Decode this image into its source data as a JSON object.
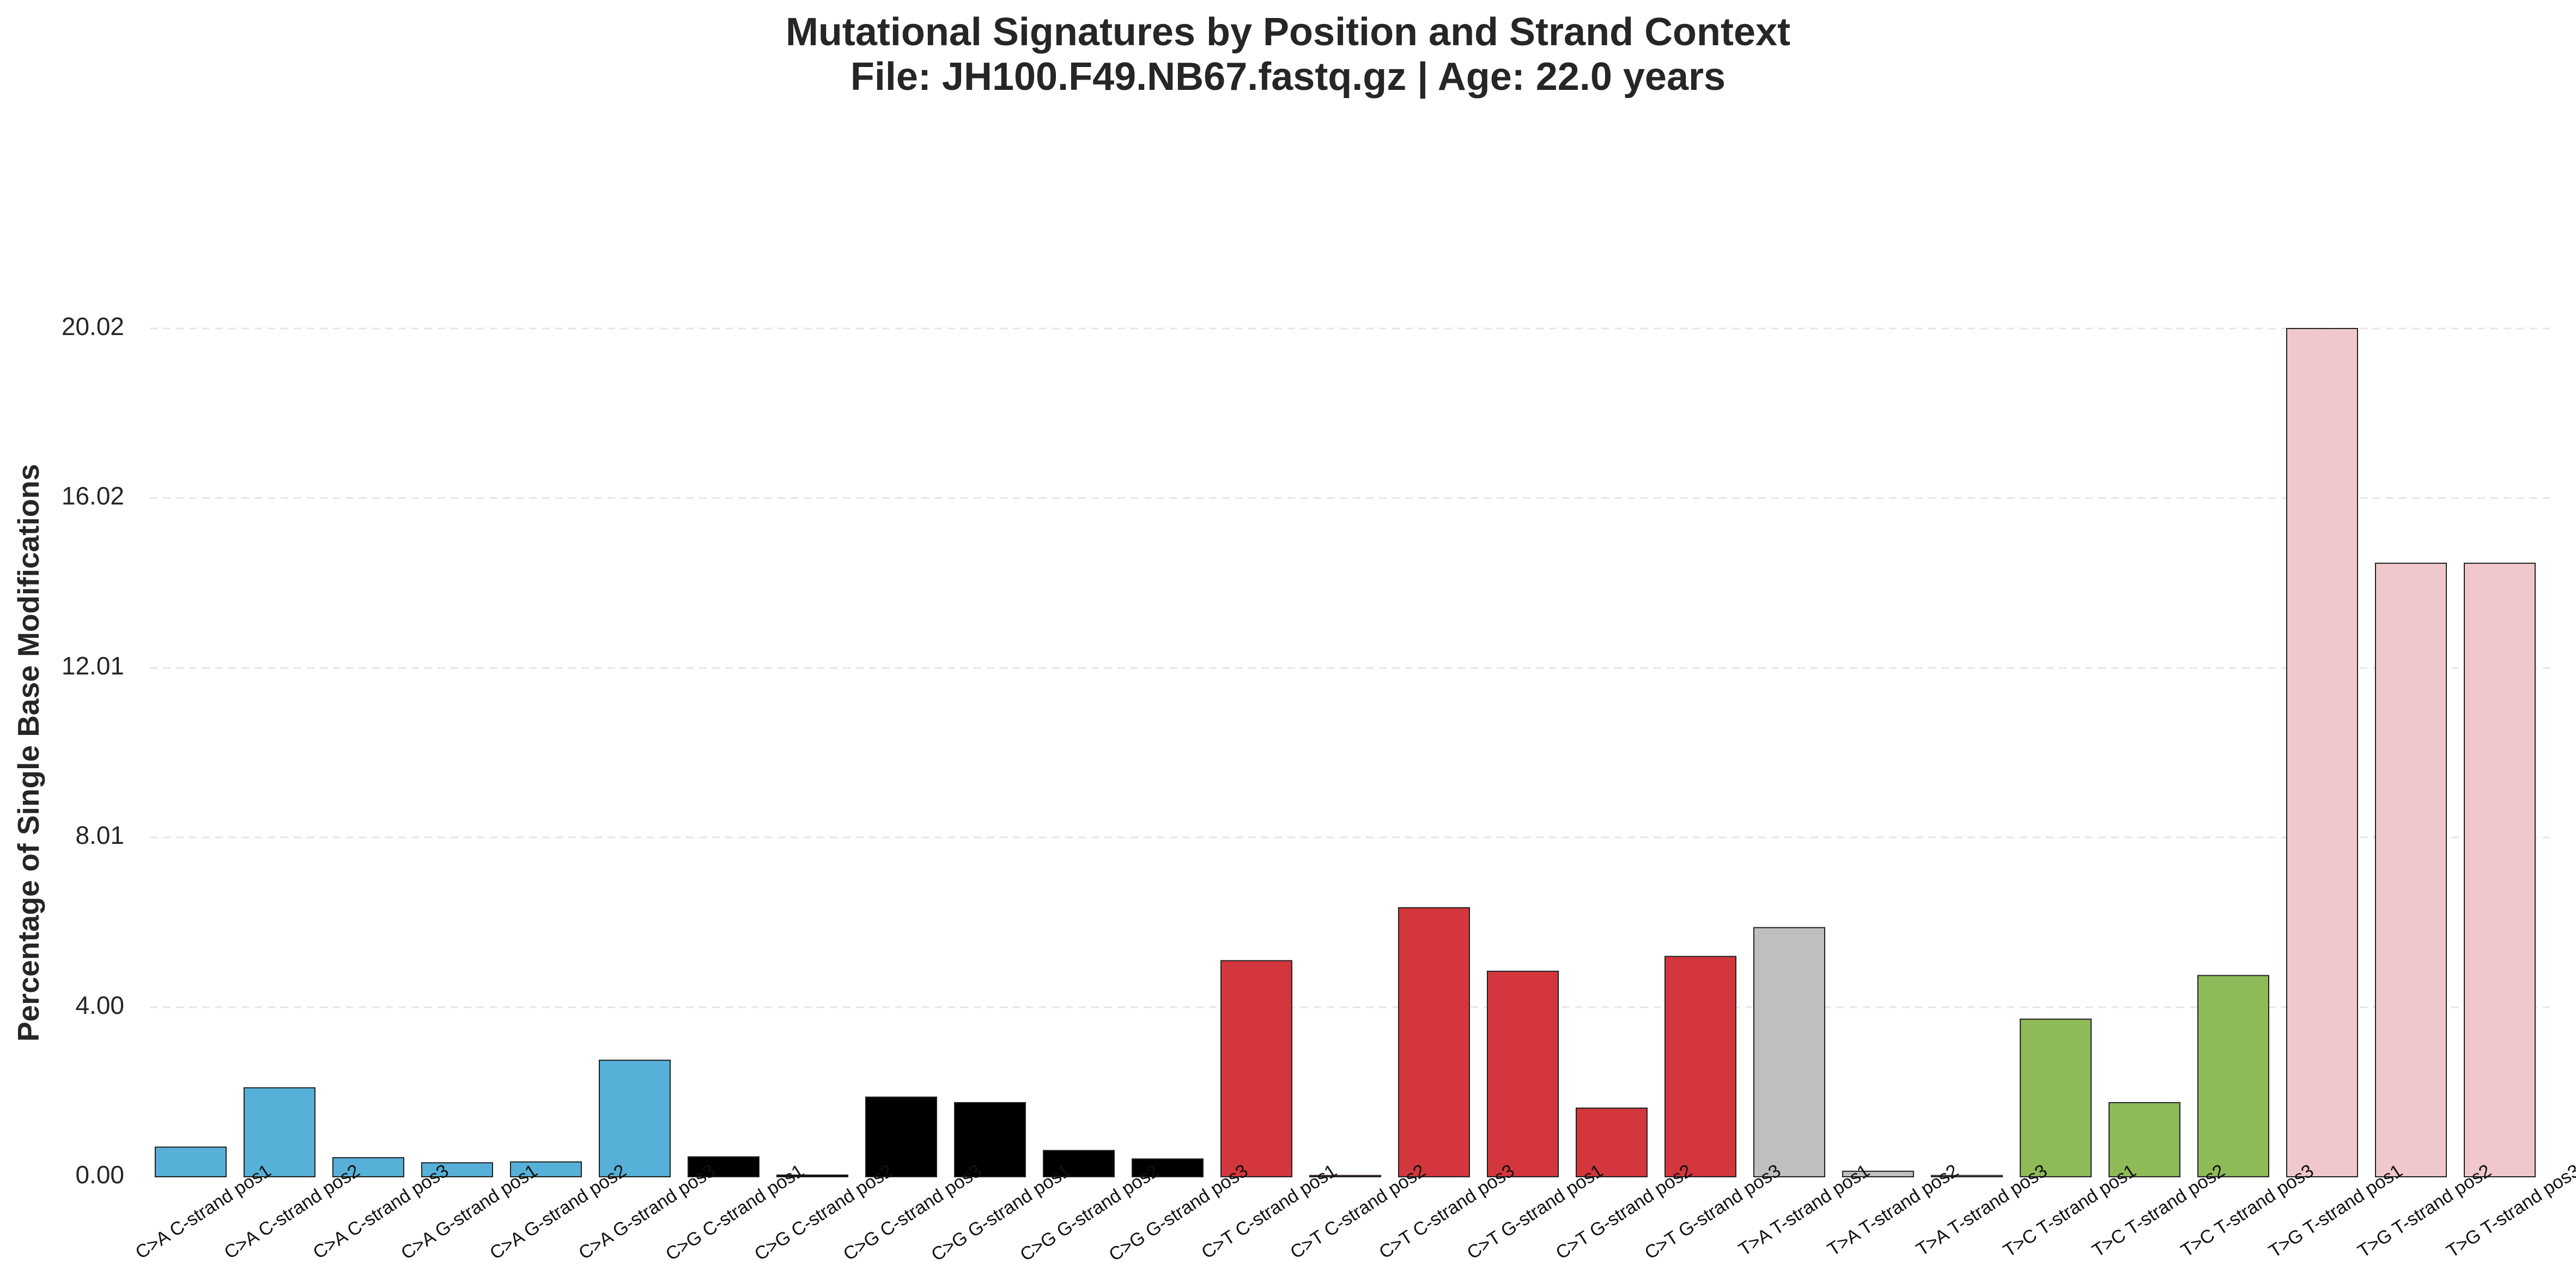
{
  "chart_data": {
    "type": "bar",
    "title": "Mutational Signatures by Position and Strand Context",
    "subtitle": "File: JH100.F49.NB67.fastq.gz | Age: 22.0 years",
    "xlabel": "",
    "ylabel": "Percentage of Single Base Modifications",
    "ylim": [
      0,
      20.02
    ],
    "yticks": [
      "0.00",
      "4.00",
      "8.01",
      "12.01",
      "16.02",
      "20.02"
    ],
    "grid": "horizontal dashed",
    "categories": [
      "C>A C-strand pos1",
      "C>A C-strand pos2",
      "C>A C-strand pos3",
      "C>A G-strand pos1",
      "C>A G-strand pos2",
      "C>A G-strand pos3",
      "C>G C-strand pos1",
      "C>G C-strand pos2",
      "C>G C-strand pos3",
      "C>G G-strand pos1",
      "C>G G-strand pos2",
      "C>G G-strand pos3",
      "C>T C-strand pos1",
      "C>T C-strand pos2",
      "C>T C-strand pos3",
      "C>T G-strand pos1",
      "C>T G-strand pos2",
      "C>T G-strand pos3",
      "T>A T-strand pos1",
      "T>A T-strand pos2",
      "T>A T-strand pos3",
      "T>C T-strand pos1",
      "T>C T-strand pos2",
      "T>C T-strand pos3",
      "T>G T-strand pos1",
      "T>G T-strand pos2",
      "T>G T-strand pos3"
    ],
    "values": [
      0.7,
      2.1,
      0.45,
      0.33,
      0.35,
      2.75,
      0.47,
      0.04,
      1.88,
      1.75,
      0.62,
      0.42,
      5.1,
      0.03,
      6.35,
      4.85,
      1.62,
      5.2,
      5.88,
      0.13,
      0.03,
      3.72,
      1.75,
      4.75,
      20.02,
      14.48,
      14.48
    ],
    "colors": [
      "#56b0d8",
      "#56b0d8",
      "#56b0d8",
      "#56b0d8",
      "#56b0d8",
      "#56b0d8",
      "#000000",
      "#000000",
      "#000000",
      "#000000",
      "#000000",
      "#000000",
      "#d3363c",
      "#d3363c",
      "#d3363c",
      "#d3363c",
      "#d3363c",
      "#d3363c",
      "#bfbfbf",
      "#bfbfbf",
      "#bfbfbf",
      "#8fba58",
      "#8fba58",
      "#8fba58",
      "#f0c8cb",
      "#f0c8cb",
      "#f0c8cb"
    ]
  }
}
